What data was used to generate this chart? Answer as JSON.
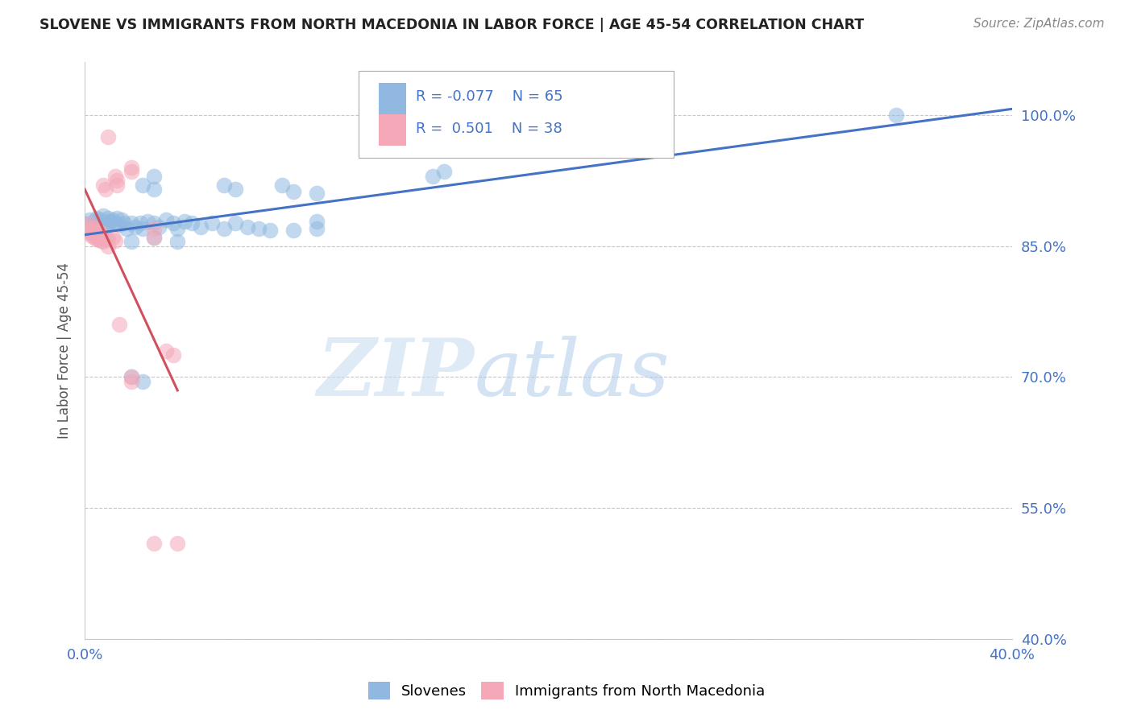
{
  "title": "SLOVENE VS IMMIGRANTS FROM NORTH MACEDONIA IN LABOR FORCE | AGE 45-54 CORRELATION CHART",
  "source": "Source: ZipAtlas.com",
  "ylabel": "In Labor Force | Age 45-54",
  "xlim": [
    0.0,
    0.4
  ],
  "ylim": [
    0.4,
    1.06
  ],
  "y_ticks": [
    0.4,
    0.55,
    0.7,
    0.85,
    1.0
  ],
  "y_tick_labels": [
    "40.0%",
    "55.0%",
    "70.0%",
    "85.0%",
    "100.0%"
  ],
  "x_tick_vals": [
    0.0,
    0.1,
    0.2,
    0.3,
    0.4
  ],
  "x_tick_labels": [
    "0.0%",
    "",
    "",
    "",
    "40.0%"
  ],
  "legend_label_blue": "Slovenes",
  "legend_label_pink": "Immigrants from North Macedonia",
  "r_blue": -0.077,
  "n_blue": 65,
  "r_pink": 0.501,
  "n_pink": 38,
  "blue_color": "#90B8E0",
  "pink_color": "#F4A8B8",
  "trendline_blue": "#4472C4",
  "trendline_pink": "#D05060",
  "watermark": "ZIPatlas",
  "blue_points": [
    [
      0.001,
      0.87
    ],
    [
      0.001,
      0.875
    ],
    [
      0.002,
      0.868
    ],
    [
      0.002,
      0.88
    ],
    [
      0.003,
      0.872
    ],
    [
      0.003,
      0.865
    ],
    [
      0.004,
      0.878
    ],
    [
      0.004,
      0.87
    ],
    [
      0.005,
      0.882
    ],
    [
      0.005,
      0.873
    ],
    [
      0.006,
      0.875
    ],
    [
      0.006,
      0.868
    ],
    [
      0.007,
      0.88
    ],
    [
      0.007,
      0.87
    ],
    [
      0.008,
      0.876
    ],
    [
      0.008,
      0.885
    ],
    [
      0.009,
      0.872
    ],
    [
      0.01,
      0.882
    ],
    [
      0.01,
      0.875
    ],
    [
      0.011,
      0.878
    ],
    [
      0.012,
      0.88
    ],
    [
      0.013,
      0.876
    ],
    [
      0.014,
      0.882
    ],
    [
      0.015,
      0.874
    ],
    [
      0.016,
      0.88
    ],
    [
      0.017,
      0.876
    ],
    [
      0.018,
      0.87
    ],
    [
      0.02,
      0.876
    ],
    [
      0.022,
      0.872
    ],
    [
      0.024,
      0.876
    ],
    [
      0.025,
      0.87
    ],
    [
      0.027,
      0.878
    ],
    [
      0.03,
      0.876
    ],
    [
      0.032,
      0.872
    ],
    [
      0.035,
      0.88
    ],
    [
      0.038,
      0.876
    ],
    [
      0.04,
      0.87
    ],
    [
      0.043,
      0.878
    ],
    [
      0.046,
      0.876
    ],
    [
      0.05,
      0.872
    ],
    [
      0.055,
      0.876
    ],
    [
      0.06,
      0.87
    ],
    [
      0.065,
      0.876
    ],
    [
      0.07,
      0.872
    ],
    [
      0.075,
      0.87
    ],
    [
      0.08,
      0.868
    ],
    [
      0.09,
      0.868
    ],
    [
      0.02,
      0.855
    ],
    [
      0.03,
      0.86
    ],
    [
      0.04,
      0.855
    ],
    [
      0.1,
      0.87
    ],
    [
      0.1,
      0.878
    ],
    [
      0.15,
      0.93
    ],
    [
      0.155,
      0.935
    ],
    [
      0.025,
      0.92
    ],
    [
      0.03,
      0.93
    ],
    [
      0.03,
      0.915
    ],
    [
      0.06,
      0.92
    ],
    [
      0.065,
      0.915
    ],
    [
      0.085,
      0.92
    ],
    [
      0.09,
      0.912
    ],
    [
      0.1,
      0.91
    ],
    [
      0.35,
      1.0
    ],
    [
      0.02,
      0.7
    ],
    [
      0.025,
      0.695
    ]
  ],
  "pink_points": [
    [
      0.001,
      0.87
    ],
    [
      0.001,
      0.865
    ],
    [
      0.002,
      0.875
    ],
    [
      0.002,
      0.868
    ],
    [
      0.003,
      0.872
    ],
    [
      0.003,
      0.862
    ],
    [
      0.004,
      0.87
    ],
    [
      0.004,
      0.86
    ],
    [
      0.005,
      0.868
    ],
    [
      0.005,
      0.858
    ],
    [
      0.006,
      0.866
    ],
    [
      0.006,
      0.858
    ],
    [
      0.007,
      0.865
    ],
    [
      0.007,
      0.856
    ],
    [
      0.008,
      0.862
    ],
    [
      0.008,
      0.855
    ],
    [
      0.009,
      0.86
    ],
    [
      0.01,
      0.858
    ],
    [
      0.01,
      0.85
    ],
    [
      0.012,
      0.86
    ],
    [
      0.013,
      0.856
    ],
    [
      0.008,
      0.92
    ],
    [
      0.009,
      0.915
    ],
    [
      0.013,
      0.93
    ],
    [
      0.014,
      0.925
    ],
    [
      0.014,
      0.92
    ],
    [
      0.02,
      0.94
    ],
    [
      0.02,
      0.935
    ],
    [
      0.03,
      0.87
    ],
    [
      0.03,
      0.86
    ],
    [
      0.035,
      0.73
    ],
    [
      0.038,
      0.725
    ],
    [
      0.015,
      0.76
    ],
    [
      0.02,
      0.7
    ],
    [
      0.02,
      0.695
    ],
    [
      0.01,
      0.975
    ],
    [
      0.04,
      0.51
    ],
    [
      0.03,
      0.51
    ]
  ]
}
